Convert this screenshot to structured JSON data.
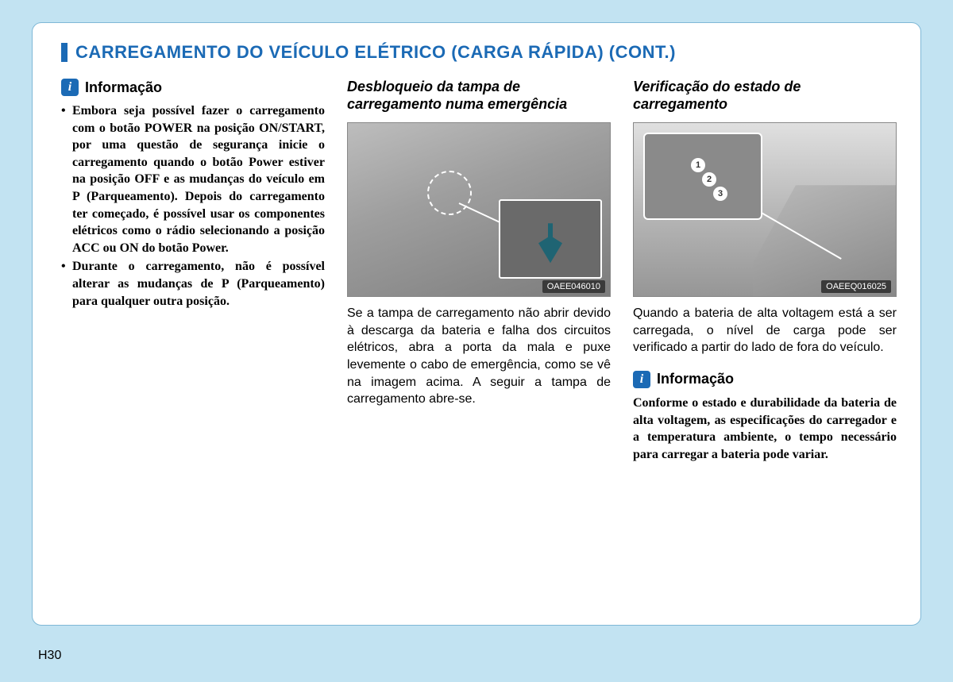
{
  "page": {
    "number": "H30",
    "title": "CARREGAMENTO DO VEÍCULO ELÉTRICO (CARGA RÁPIDA) (CONT.)",
    "title_color": "#1b6ab5",
    "background_color": "#c2e3f2",
    "container_border": "#7fb8d6"
  },
  "col1": {
    "info_label": "Informação",
    "bullets": [
      "Embora seja possível fazer o carregamento com o botão POWER na posição ON/START, por uma questão de segurança inicie o carregamento quando o botão Power estiver na posição OFF e as mudanças do veículo em P (Parqueamento). Depois do carregamento ter começado, é possível usar os componentes elétricos como o rádio selecionando a posição ACC ou ON do botão Power.",
      "Durante o carregamento, não é possível alterar as mudanças de P (Parqueamento) para qualquer outra posição."
    ]
  },
  "col2": {
    "subheading": "Desbloqueio da tampa de carregamento numa emergência",
    "figure_code": "OAEE046010",
    "body": "Se a tampa de carregamento não abrir devido à descarga da bateria e falha dos circuitos elétricos, abra a porta da mala e puxe levemente o cabo de emergência, como se vê na imagem acima. A seguir a tampa de carregamento abre-se."
  },
  "col3": {
    "subheading": "Verificação do estado de carregamento",
    "figure_code": "OAEEQ016025",
    "led_labels": {
      "l1": "1",
      "l2": "2",
      "l3": "3"
    },
    "body": "Quando a bateria de alta voltagem está a ser carregada, o nível de carga pode ser verificado a partir do lado de fora do veículo.",
    "info_label": "Informação",
    "info_body": "Conforme o estado e durabilidade da bateria de alta voltagem, as especificações do carregador e a temperatura ambiente, o tempo necessário para carregar a bateria pode variar."
  }
}
